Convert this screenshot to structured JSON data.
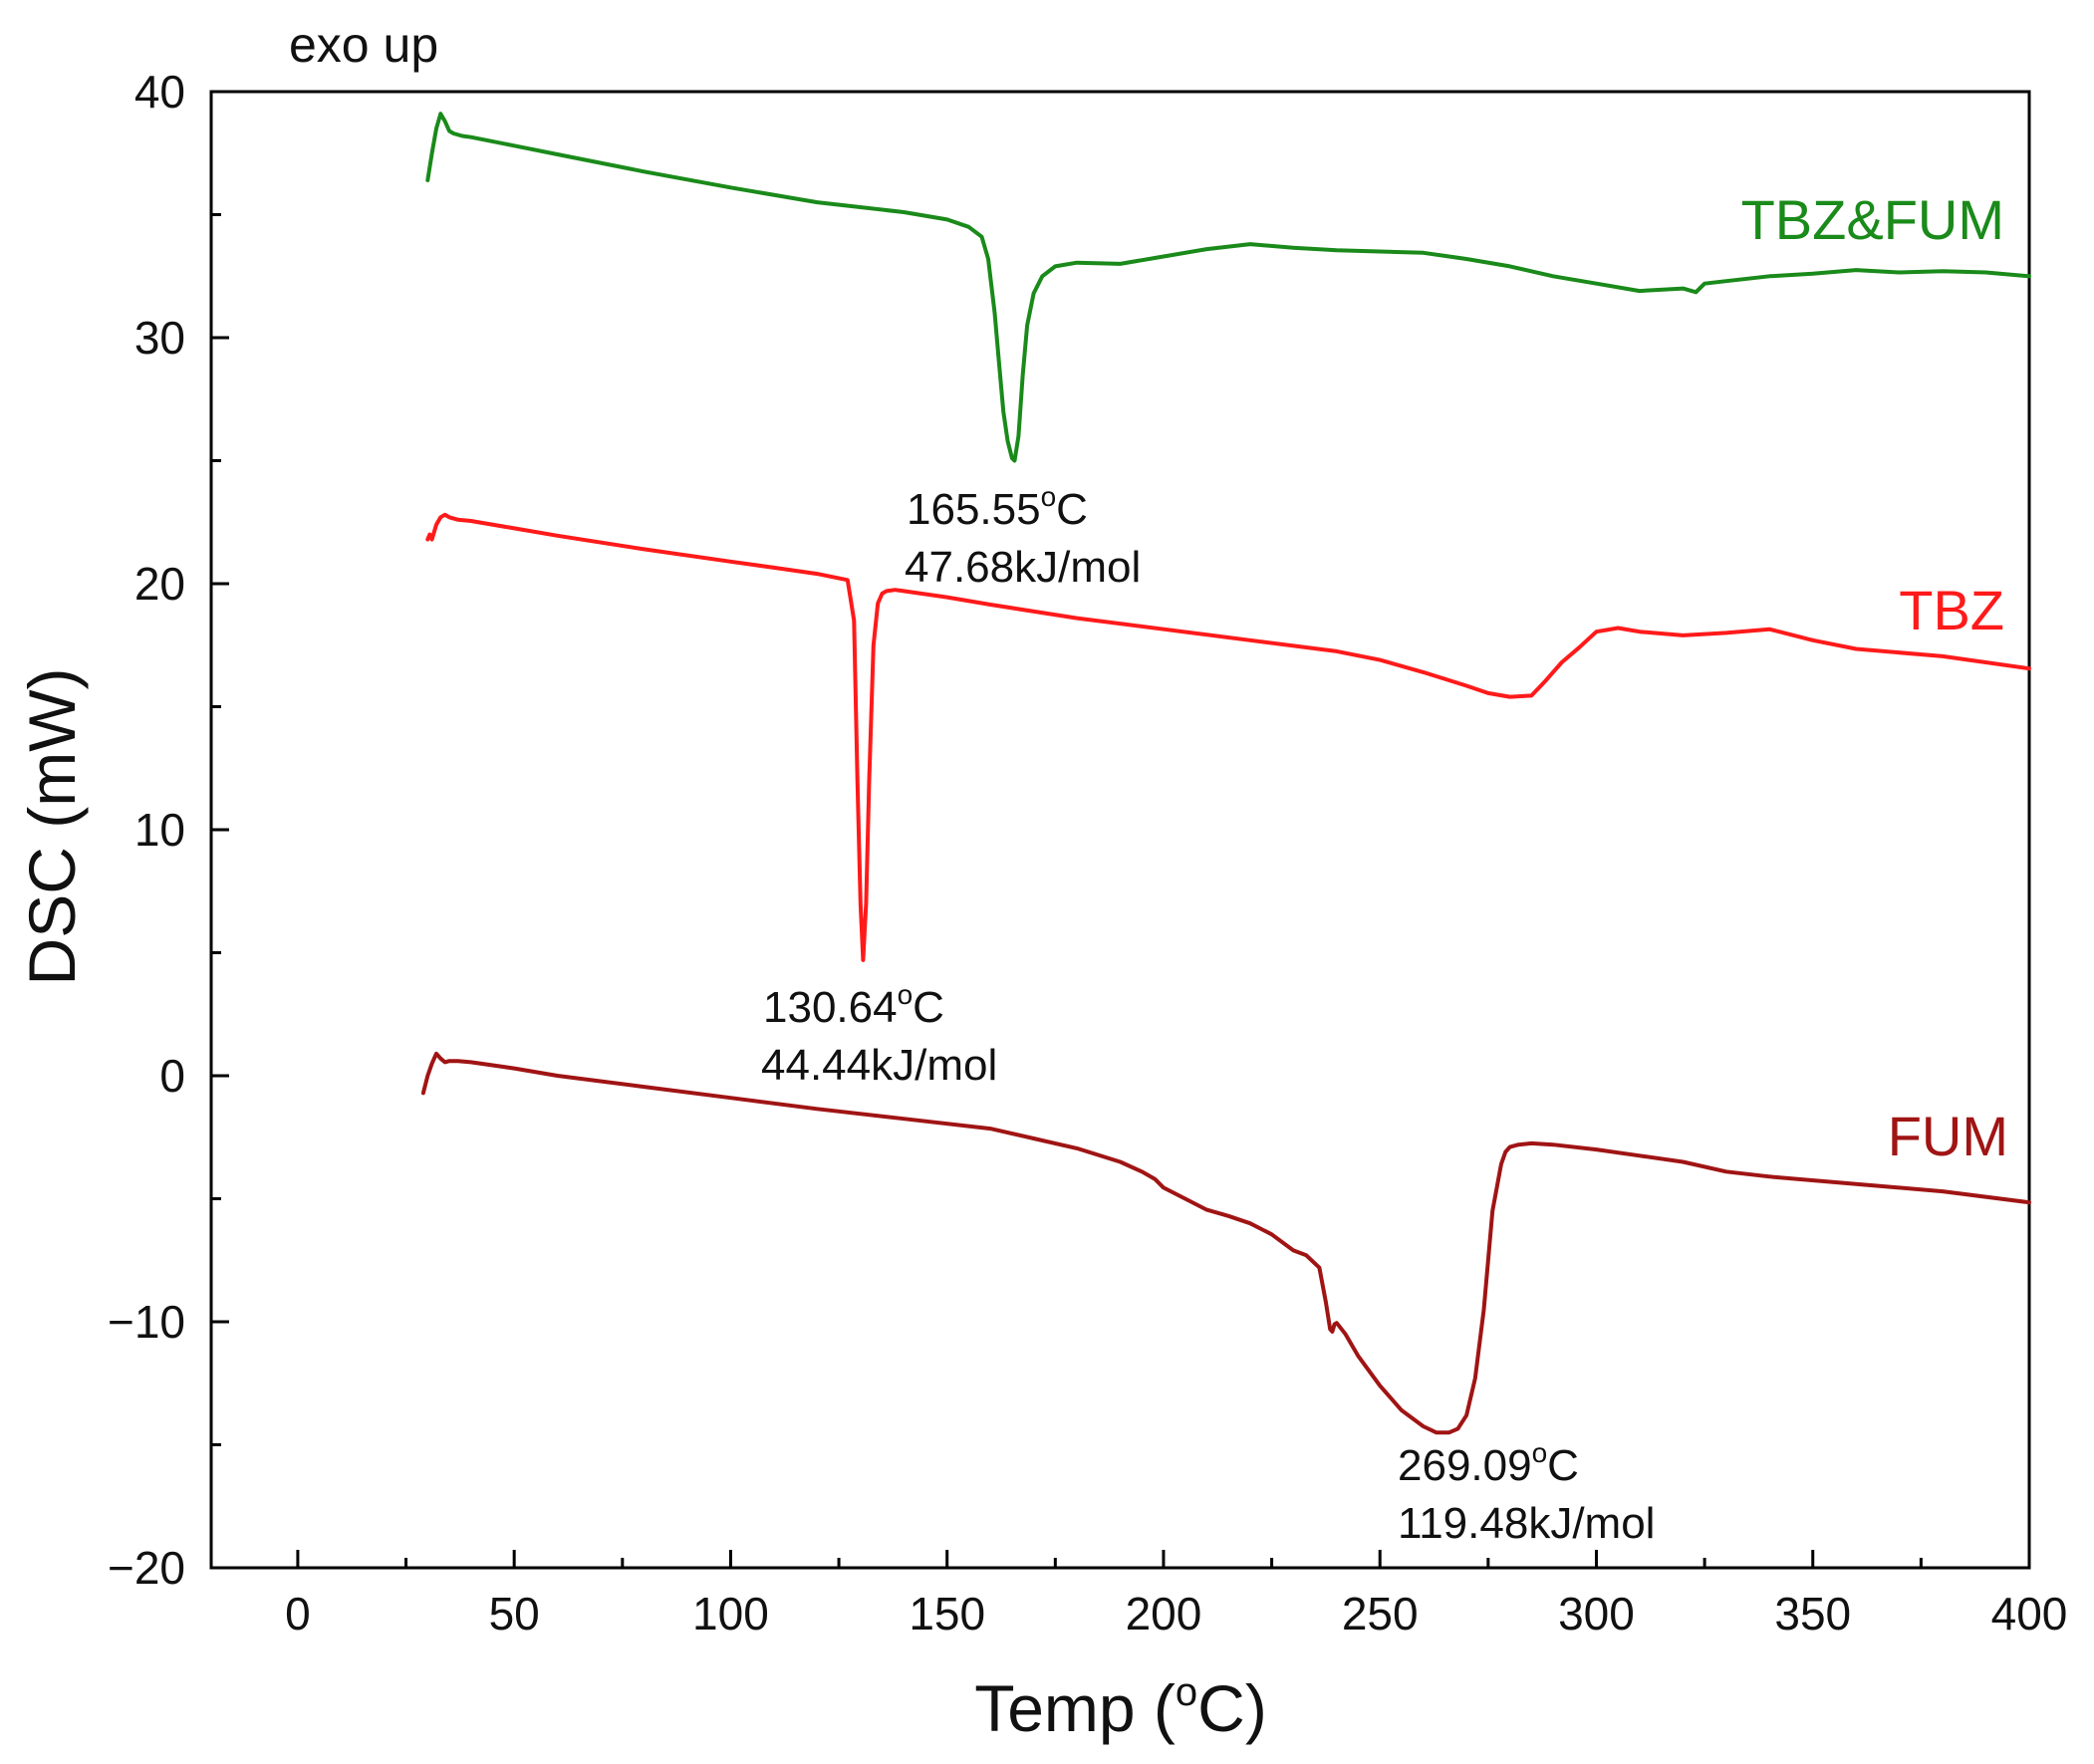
{
  "chart_data": {
    "type": "line",
    "title": "",
    "note": "exo up",
    "xlabel": {
      "prefix": "Temp (",
      "sup": "o",
      "suffix": "C)"
    },
    "ylabel": "DSC (mW)",
    "xlim": [
      -20,
      400
    ],
    "ylim": [
      -20,
      40
    ],
    "xticks": [
      0,
      50,
      100,
      150,
      200,
      250,
      300,
      350,
      400
    ],
    "yticks": [
      -20,
      -10,
      0,
      10,
      20,
      30,
      40
    ],
    "xtick_labels": [
      "0",
      "50",
      "100",
      "150",
      "200",
      "250",
      "300",
      "350",
      "400"
    ],
    "ytick_labels": [
      "−20",
      "−10",
      "0",
      "10",
      "20",
      "30",
      "40"
    ],
    "series": [
      {
        "name": "TBZ&FUM",
        "color": "#1a8a1a",
        "x": [
          30,
          31,
          32,
          33,
          34,
          35,
          36,
          38,
          40,
          50,
          60,
          80,
          100,
          120,
          140,
          150,
          155,
          158,
          159.5,
          161,
          162,
          163,
          164,
          165,
          165.6,
          166.5,
          167.5,
          168.5,
          170,
          172,
          175,
          180,
          190,
          200,
          210,
          220,
          230,
          240,
          250,
          260,
          270,
          280,
          290,
          300,
          310,
          320,
          323,
          325,
          330,
          340,
          350,
          360,
          370,
          380,
          390,
          400
        ],
        "y": [
          36.4,
          37.5,
          38.5,
          39.1,
          38.8,
          38.4,
          38.3,
          38.2,
          38.15,
          37.8,
          37.45,
          36.75,
          36.1,
          35.5,
          35.1,
          34.8,
          34.5,
          34.1,
          33.2,
          31.0,
          29.0,
          27.0,
          25.8,
          25.1,
          25.0,
          26.0,
          28.5,
          30.5,
          31.8,
          32.5,
          32.9,
          33.05,
          33.0,
          33.3,
          33.6,
          33.8,
          33.65,
          33.55,
          33.5,
          33.45,
          33.2,
          32.9,
          32.5,
          32.2,
          31.9,
          32.0,
          31.85,
          32.2,
          32.3,
          32.5,
          32.6,
          32.75,
          32.65,
          32.7,
          32.65,
          32.5
        ]
      },
      {
        "name": "TBZ",
        "color": "#ff1a1a",
        "x": [
          30,
          30.5,
          31,
          31.5,
          32,
          33,
          34,
          35,
          37,
          40,
          50,
          60,
          80,
          100,
          110,
          120,
          127,
          128.5,
          129.3,
          130,
          130.6,
          131.3,
          132,
          133,
          134,
          135,
          136,
          138,
          140,
          150,
          160,
          180,
          200,
          220,
          240,
          250,
          260,
          270,
          275,
          280,
          285,
          288,
          292,
          296,
          300,
          305,
          310,
          320,
          330,
          340,
          350,
          360,
          380,
          400
        ],
        "y": [
          21.8,
          22.0,
          21.8,
          22.1,
          22.4,
          22.7,
          22.8,
          22.7,
          22.6,
          22.55,
          22.25,
          21.95,
          21.4,
          20.9,
          20.65,
          20.4,
          20.15,
          18.5,
          12.0,
          7.0,
          4.7,
          7.0,
          12.0,
          17.5,
          19.2,
          19.6,
          19.7,
          19.75,
          19.7,
          19.45,
          19.15,
          18.6,
          18.15,
          17.7,
          17.25,
          16.9,
          16.4,
          15.85,
          15.55,
          15.4,
          15.45,
          16.0,
          16.8,
          17.4,
          18.05,
          18.2,
          18.05,
          17.9,
          18.0,
          18.15,
          17.7,
          17.35,
          17.05,
          16.55
        ]
      },
      {
        "name": "FUM",
        "color": "#a01414",
        "x": [
          29,
          30,
          31,
          32,
          33,
          34,
          35,
          37,
          40,
          50,
          60,
          80,
          100,
          120,
          140,
          160,
          170,
          180,
          190,
          195,
          198,
          200,
          205,
          210,
          215,
          220,
          225,
          230,
          233,
          236,
          237.5,
          238.5,
          239,
          239.5,
          240,
          242,
          245,
          250,
          255,
          260,
          263,
          266,
          268,
          270,
          272,
          274,
          276,
          278,
          279,
          280,
          282,
          285,
          290,
          300,
          310,
          320,
          330,
          340,
          360,
          380,
          400
        ],
        "y": [
          -0.7,
          0.0,
          0.5,
          0.9,
          0.7,
          0.55,
          0.6,
          0.6,
          0.55,
          0.3,
          0.0,
          -0.45,
          -0.9,
          -1.35,
          -1.75,
          -2.15,
          -2.55,
          -2.95,
          -3.5,
          -3.9,
          -4.2,
          -4.55,
          -5.0,
          -5.45,
          -5.7,
          -6.0,
          -6.45,
          -7.1,
          -7.3,
          -7.8,
          -9.2,
          -10.3,
          -10.4,
          -10.1,
          -10.05,
          -10.5,
          -11.4,
          -12.6,
          -13.6,
          -14.25,
          -14.5,
          -14.5,
          -14.35,
          -13.8,
          -12.3,
          -9.5,
          -5.5,
          -3.6,
          -3.1,
          -2.9,
          -2.8,
          -2.75,
          -2.8,
          -3.0,
          -3.25,
          -3.5,
          -3.9,
          -4.1,
          -4.4,
          -4.7,
          -5.15
        ]
      }
    ],
    "series_labels": [
      {
        "text": "TBZ&FUM",
        "color": "#1a8a1a"
      },
      {
        "text": "TBZ",
        "color": "#ff1a1a"
      },
      {
        "text": "FUM",
        "color": "#a01414"
      }
    ],
    "annotations": [
      {
        "temp": "165.55",
        "deg": "o",
        "unit": "C",
        "energy": "47.68kJ/mol",
        "x": 165.55,
        "y": 25.0
      },
      {
        "temp": "130.64",
        "deg": "o",
        "unit": "C",
        "energy": "44.44kJ/mol",
        "x": 130.64,
        "y": 4.7
      },
      {
        "temp": "269.09",
        "deg": "o",
        "unit": "C",
        "energy": "119.48kJ/mol",
        "x": 269.09,
        "y": -14.5
      }
    ]
  }
}
